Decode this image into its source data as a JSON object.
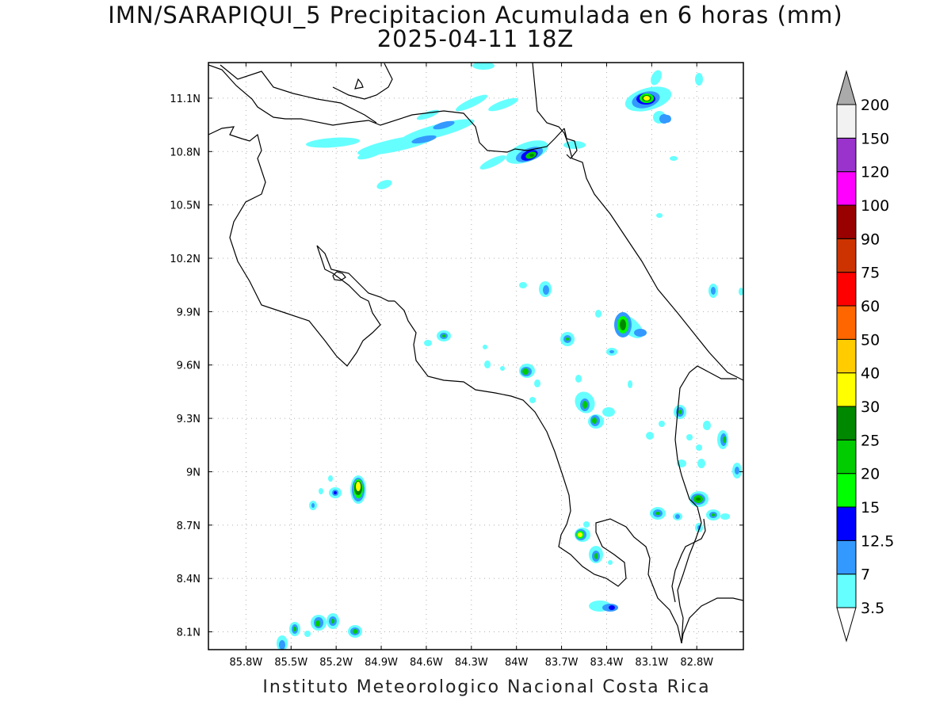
{
  "title": {
    "line1": "IMN/SARAPIQUI_5 Precipitacion Acumulada en 6 horas (mm)",
    "line2": "2025-04-11 18Z"
  },
  "footer": "Instituto Meteorologico Nacional Costa Rica",
  "map": {
    "lon_range": [
      -86.05,
      -82.49
    ],
    "lat_range": [
      8.0,
      11.3
    ],
    "lon_ticks": [
      {
        "value": -85.8,
        "label": "85.8W"
      },
      {
        "value": -85.5,
        "label": "85.5W"
      },
      {
        "value": -85.2,
        "label": "85.2W"
      },
      {
        "value": -84.9,
        "label": "84.9W"
      },
      {
        "value": -84.6,
        "label": "84.6W"
      },
      {
        "value": -84.3,
        "label": "84.3W"
      },
      {
        "value": -84.0,
        "label": "84W"
      },
      {
        "value": -83.7,
        "label": "83.7W"
      },
      {
        "value": -83.4,
        "label": "83.4W"
      },
      {
        "value": -83.1,
        "label": "83.1W"
      },
      {
        "value": -82.8,
        "label": "82.8W"
      }
    ],
    "lat_ticks": [
      {
        "value": 8.1,
        "label": "8.1N"
      },
      {
        "value": 8.4,
        "label": "8.4N"
      },
      {
        "value": 8.7,
        "label": "8.7N"
      },
      {
        "value": 9.0,
        "label": "9N"
      },
      {
        "value": 9.3,
        "label": "9.3N"
      },
      {
        "value": 9.6,
        "label": "9.6N"
      },
      {
        "value": 9.9,
        "label": "9.9N"
      },
      {
        "value": 10.2,
        "label": "10.2N"
      },
      {
        "value": 10.5,
        "label": "10.5N"
      },
      {
        "value": 10.8,
        "label": "10.8N"
      },
      {
        "value": 11.1,
        "label": "11.1N"
      }
    ],
    "grid": true,
    "coastline_color": "#000000"
  },
  "colorbar": {
    "orientation": "vertical",
    "placement": "right",
    "levels": [
      "3.5",
      "7",
      "12.5",
      "15",
      "20",
      "25",
      "30",
      "40",
      "50",
      "60",
      "75",
      "90",
      "100",
      "120",
      "150",
      "200"
    ],
    "colors": [
      "#66ffff",
      "#3399ff",
      "#0000ff",
      "#00ff00",
      "#00cc00",
      "#008800",
      "#ffff00",
      "#ffcc00",
      "#ff6600",
      "#ff0000",
      "#cc3300",
      "#990000",
      "#ff00ff",
      "#9933cc",
      "#f2f2f2",
      "#aaaaaa"
    ]
  },
  "precip_cells": [
    {
      "lon": -83.91,
      "lat": 10.78,
      "max_level": 25
    },
    {
      "lon": -83.09,
      "lat": 11.1,
      "max_level": 40
    },
    {
      "lon": -85.03,
      "lat": 8.9,
      "max_level": 40
    },
    {
      "lon": -83.3,
      "lat": 9.82,
      "max_level": 25
    },
    {
      "lon": -83.57,
      "lat": 8.64,
      "max_level": 25
    },
    {
      "lon": -82.79,
      "lat": 8.85,
      "max_level": 25
    },
    {
      "lon": -83.88,
      "lat": 9.56,
      "max_level": 25
    },
    {
      "lon": -85.05,
      "lat": 8.11,
      "max_level": 25
    },
    {
      "lon": -85.28,
      "lat": 8.15,
      "max_level": 25
    }
  ]
}
